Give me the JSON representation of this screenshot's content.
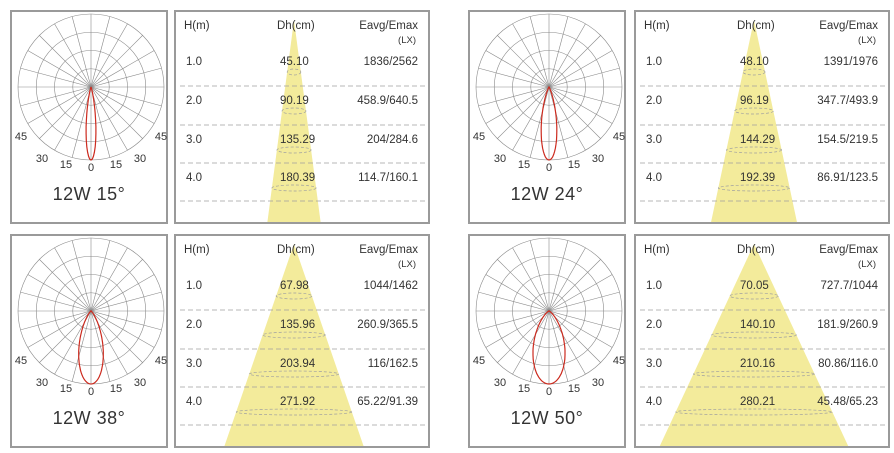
{
  "headers": {
    "height": "H(m)",
    "diameter": "Dh(cm)",
    "illuminance": "Eavg/Emax",
    "unit": "(LX)"
  },
  "colors": {
    "beam": "#f3eb9b",
    "curve": "#cc2a1e",
    "grid": "#8a8a8a",
    "border": "#9a9a9a",
    "dash": "#a0a0a0"
  },
  "panels": [
    {
      "label": "12W 15°",
      "beam_angle_deg": 15,
      "tick_labels": [
        "45",
        "30",
        "15",
        "0",
        "15",
        "30",
        "45"
      ],
      "rows": [
        {
          "h": "1.0",
          "dh": "45.10",
          "eavg_emax": "1836/2562"
        },
        {
          "h": "2.0",
          "dh": "90.19",
          "eavg_emax": "458.9/640.5"
        },
        {
          "h": "3.0",
          "dh": "135.29",
          "eavg_emax": "204/284.6"
        },
        {
          "h": "4.0",
          "dh": "180.39",
          "eavg_emax": "114.7/160.1"
        }
      ]
    },
    {
      "label": "12W 24°",
      "beam_angle_deg": 24,
      "tick_labels": [
        "45",
        "30",
        "15",
        "0",
        "15",
        "30",
        "45"
      ],
      "rows": [
        {
          "h": "1.0",
          "dh": "48.10",
          "eavg_emax": "1391/1976"
        },
        {
          "h": "2.0",
          "dh": "96.19",
          "eavg_emax": "347.7/493.9"
        },
        {
          "h": "3.0",
          "dh": "144.29",
          "eavg_emax": "154.5/219.5"
        },
        {
          "h": "4.0",
          "dh": "192.39",
          "eavg_emax": "86.91/123.5"
        }
      ]
    },
    {
      "label": "12W 38°",
      "beam_angle_deg": 38,
      "tick_labels": [
        "45",
        "30",
        "15",
        "0",
        "15",
        "30",
        "45"
      ],
      "rows": [
        {
          "h": "1.0",
          "dh": "67.98",
          "eavg_emax": "1044/1462"
        },
        {
          "h": "2.0",
          "dh": "135.96",
          "eavg_emax": "260.9/365.5"
        },
        {
          "h": "3.0",
          "dh": "203.94",
          "eavg_emax": "116/162.5"
        },
        {
          "h": "4.0",
          "dh": "271.92",
          "eavg_emax": "65.22/91.39"
        }
      ]
    },
    {
      "label": "12W 50°",
      "beam_angle_deg": 50,
      "tick_labels": [
        "45",
        "30",
        "15",
        "0",
        "15",
        "30",
        "45"
      ],
      "rows": [
        {
          "h": "1.0",
          "dh": "70.05",
          "eavg_emax": "727.7/1044"
        },
        {
          "h": "2.0",
          "dh": "140.10",
          "eavg_emax": "181.9/260.9"
        },
        {
          "h": "3.0",
          "dh": "210.16",
          "eavg_emax": "80.86/116.0"
        },
        {
          "h": "4.0",
          "dh": "280.21",
          "eavg_emax": "45.48/65.23"
        }
      ]
    }
  ]
}
